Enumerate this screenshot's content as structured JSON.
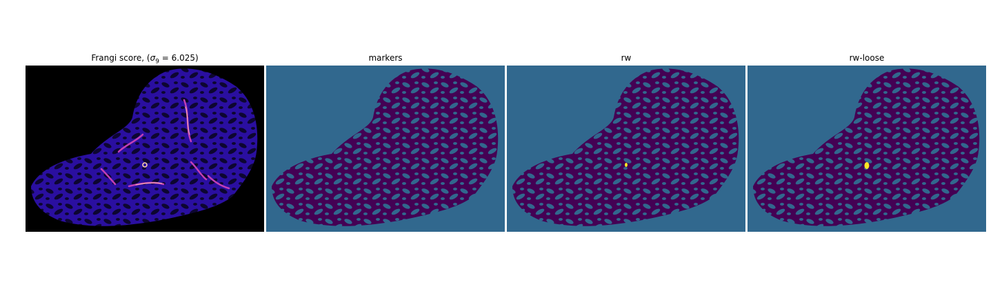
{
  "figure": {
    "panels": [
      {
        "id": "frangi",
        "title_prefix": "Frangi score, (",
        "title_symbol": "σ",
        "title_subscript": "9",
        "title_suffix": " = 6.025)",
        "colormap": "magma-like",
        "background": "#000000"
      },
      {
        "id": "markers",
        "title": "markers",
        "background": "#31688e",
        "foreground": "#440154"
      },
      {
        "id": "rw",
        "title": "rw",
        "background": "#31688e",
        "foreground": "#440154",
        "highlight": "#fde725"
      },
      {
        "id": "rw-loose",
        "title": "rw-loose",
        "background": "#31688e",
        "foreground": "#440154",
        "highlight": "#fde725"
      }
    ]
  }
}
